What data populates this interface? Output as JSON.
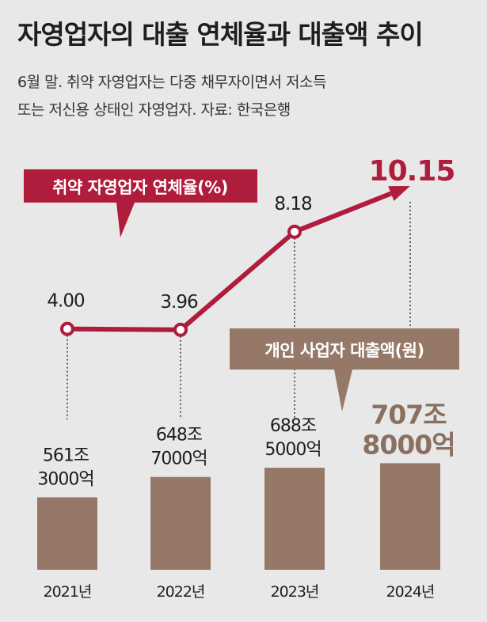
{
  "title": "자영업자의 대출 연체율과 대출액 추이",
  "subtitle_line1": "6월 말. 취약 자영업자는 다중 채무자이면서 저소득",
  "subtitle_line2": "또는 저신용 상태인 자영업자. 자료: 한국은행",
  "colors": {
    "background": "#e8e8e8",
    "line": "#b01c3c",
    "bar": "#957868",
    "highlight_amount": "#8a7060"
  },
  "chart_data": {
    "type": "bar+line",
    "categories": [
      "2021년",
      "2022년",
      "2023년",
      "2024년"
    ],
    "series": [
      {
        "name": "취약 자영업자 연체율(%)",
        "type": "line",
        "values": [
          4.0,
          3.96,
          8.18,
          10.15
        ],
        "labels": [
          "4.00",
          "3.96",
          "8.18",
          "10.15"
        ]
      },
      {
        "name": "개인 사업자 대출액(원)",
        "type": "bar",
        "values_trillion_won": [
          561.3,
          648.7,
          688.5,
          707.8
        ],
        "labels_line1": [
          "561조",
          "648조",
          "688조",
          "707조"
        ],
        "labels_line2": [
          "3000억",
          "7000억",
          "5000억",
          "8000억"
        ]
      }
    ],
    "title": "자영업자의 대출 연체율과 대출액 추이",
    "xlabel": "",
    "ylabel": ""
  }
}
